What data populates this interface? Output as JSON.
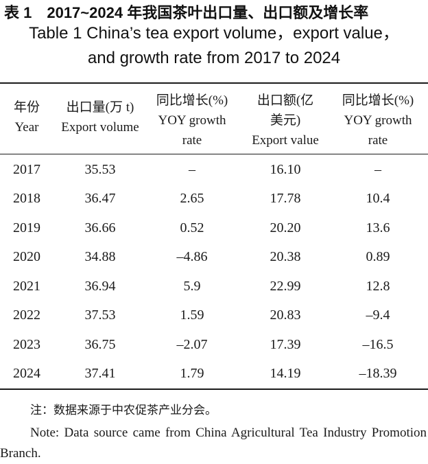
{
  "caption": {
    "zh": "表 1　2017~2024 年我国茶叶出口量、出口额及增长率",
    "en_line1": "Table 1 China’s tea export volume，export value，",
    "en_line2": "and growth rate from 2017 to 2024"
  },
  "table": {
    "headers": [
      {
        "zh": "年份",
        "en": "Year"
      },
      {
        "zh": "出口量(万 t)",
        "en": "Export volume"
      },
      {
        "zh": "同比增长(%)",
        "en": "YOY growth",
        "en2": "rate"
      },
      {
        "zh": "出口额(亿",
        "zh2": "美元)",
        "en": "Export value"
      },
      {
        "zh": "同比增长(%)",
        "en": "YOY growth",
        "en2": "rate"
      }
    ],
    "rows": [
      [
        "2017",
        "35.53",
        "–",
        "16.10",
        "–"
      ],
      [
        "2018",
        "36.47",
        "2.65",
        "17.78",
        "10.4"
      ],
      [
        "2019",
        "36.66",
        "0.52",
        "20.20",
        "13.6"
      ],
      [
        "2020",
        "34.88",
        "–4.86",
        "20.38",
        "0.89"
      ],
      [
        "2021",
        "36.94",
        "5.9",
        "22.99",
        "12.8"
      ],
      [
        "2022",
        "37.53",
        "1.59",
        "20.83",
        "–9.4"
      ],
      [
        "2023",
        "36.75",
        "–2.07",
        "17.39",
        "–16.5"
      ],
      [
        "2024",
        "37.41",
        "1.79",
        "14.19",
        "–18.39"
      ]
    ]
  },
  "notes": {
    "zh": "注：数据来源于中农促茶产业分会。",
    "en": "Note: Data source came from China Agricultural Tea Industry Promotion Branch."
  }
}
